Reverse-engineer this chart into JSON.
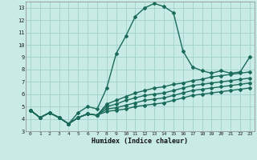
{
  "xlabel": "Humidex (Indice chaleur)",
  "bg_color": "#c8ebe6",
  "grid_color": "#a0d0cc",
  "line_color": "#1a6b5a",
  "xlim": [
    -0.5,
    23.5
  ],
  "ylim": [
    3,
    13.5
  ],
  "yticks": [
    3,
    4,
    5,
    6,
    7,
    8,
    9,
    10,
    11,
    12,
    13
  ],
  "xticks": [
    0,
    1,
    2,
    3,
    4,
    5,
    6,
    7,
    8,
    9,
    10,
    11,
    12,
    13,
    14,
    15,
    16,
    17,
    18,
    19,
    20,
    21,
    22,
    23
  ],
  "lines": [
    [
      4.7,
      4.1,
      4.5,
      4.1,
      3.6,
      4.5,
      5.0,
      4.8,
      6.5,
      9.3,
      10.7,
      12.3,
      13.0,
      13.35,
      13.1,
      12.6,
      9.5,
      8.2,
      7.9,
      7.7,
      7.9,
      7.7,
      7.8,
      9.0
    ],
    [
      4.7,
      4.1,
      4.5,
      4.1,
      3.6,
      4.1,
      4.4,
      4.3,
      5.2,
      5.5,
      5.8,
      6.1,
      6.3,
      6.5,
      6.6,
      6.8,
      6.9,
      7.1,
      7.2,
      7.4,
      7.5,
      7.6,
      7.7,
      7.8
    ],
    [
      4.7,
      4.1,
      4.5,
      4.1,
      3.6,
      4.1,
      4.4,
      4.3,
      5.0,
      5.2,
      5.5,
      5.7,
      5.9,
      6.0,
      6.1,
      6.3,
      6.5,
      6.7,
      6.8,
      6.9,
      7.0,
      7.1,
      7.2,
      7.3
    ],
    [
      4.7,
      4.1,
      4.5,
      4.1,
      3.6,
      4.1,
      4.4,
      4.3,
      4.8,
      4.9,
      5.1,
      5.3,
      5.5,
      5.6,
      5.7,
      5.9,
      6.1,
      6.3,
      6.4,
      6.5,
      6.6,
      6.7,
      6.8,
      6.9
    ],
    [
      4.7,
      4.1,
      4.5,
      4.1,
      3.6,
      4.1,
      4.4,
      4.3,
      4.6,
      4.7,
      4.8,
      5.0,
      5.1,
      5.2,
      5.3,
      5.5,
      5.7,
      5.9,
      6.0,
      6.1,
      6.2,
      6.3,
      6.4,
      6.5
    ]
  ]
}
